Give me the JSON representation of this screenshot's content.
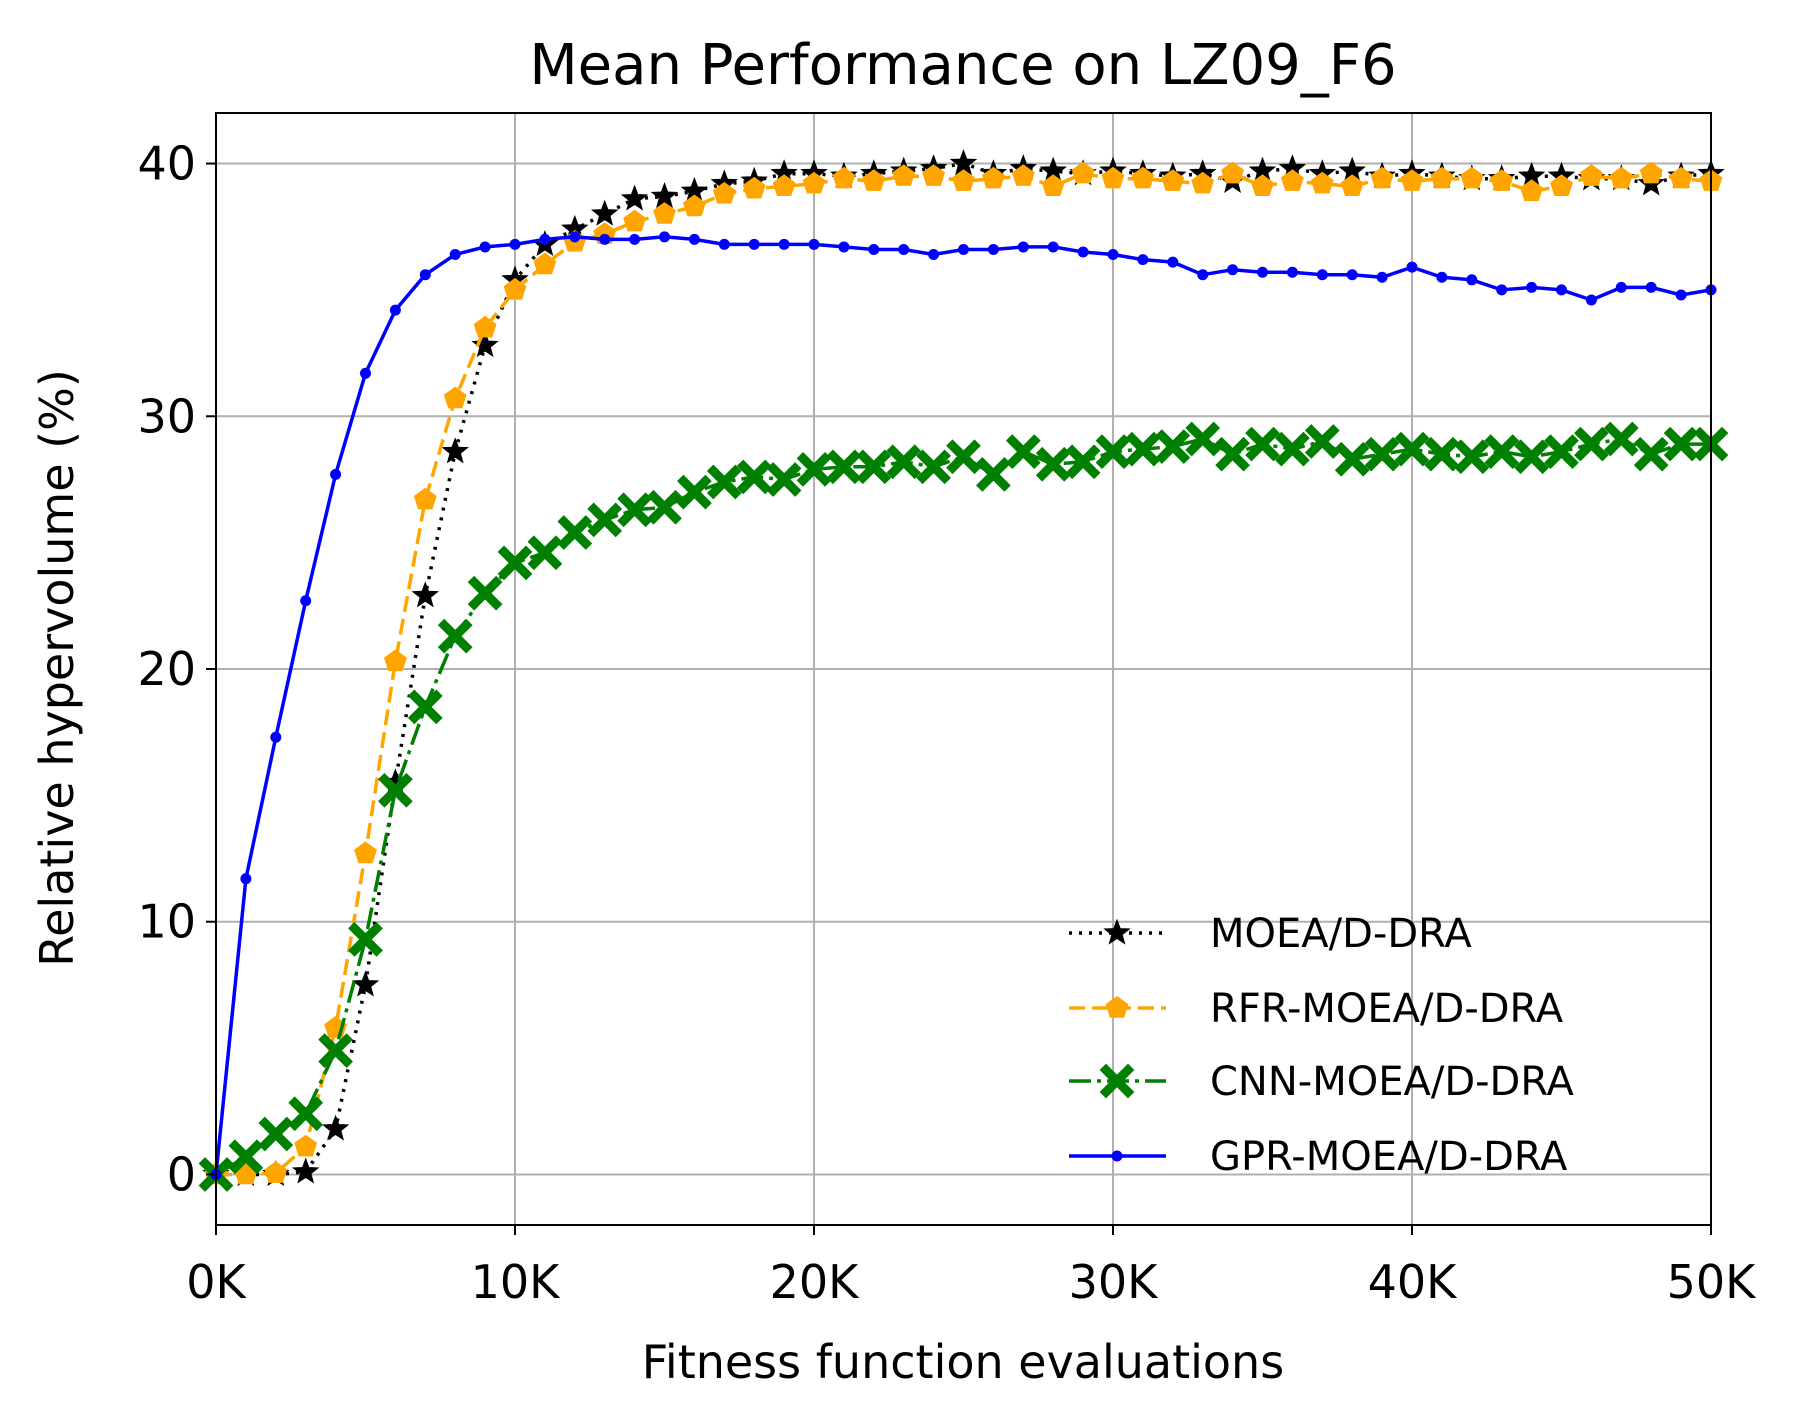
{
  "chart_data": {
    "type": "line",
    "title": "Mean Performance on LZ09_F6",
    "xlabel": "Fitness function evaluations",
    "ylabel": "Relative hypervolume (%)",
    "xlim": [
      0,
      50000
    ],
    "ylim": [
      -2,
      42
    ],
    "grid": true,
    "legend_position": "lower-right",
    "x_ticks": [
      0,
      10000,
      20000,
      30000,
      40000,
      50000
    ],
    "x_tick_labels": [
      "0K",
      "10K",
      "20K",
      "30K",
      "40K",
      "50K"
    ],
    "y_ticks": [
      0,
      10,
      20,
      30,
      40
    ],
    "y_tick_labels": [
      "0",
      "10",
      "20",
      "30",
      "40"
    ],
    "x": [
      0,
      1000,
      2000,
      3000,
      4000,
      5000,
      6000,
      7000,
      8000,
      9000,
      10000,
      11000,
      12000,
      13000,
      14000,
      15000,
      16000,
      17000,
      18000,
      19000,
      20000,
      21000,
      22000,
      23000,
      24000,
      25000,
      26000,
      27000,
      28000,
      29000,
      30000,
      31000,
      32000,
      33000,
      34000,
      35000,
      36000,
      37000,
      38000,
      39000,
      40000,
      41000,
      42000,
      43000,
      44000,
      45000,
      46000,
      47000,
      48000,
      49000,
      50000
    ],
    "series": [
      {
        "name": "MOEA/D-DRA",
        "color": "#000000",
        "linestyle": "dotted",
        "marker": "star",
        "values": [
          0,
          0,
          0,
          0.1,
          1.8,
          7.5,
          15.5,
          22.9,
          28.6,
          32.8,
          35.4,
          36.8,
          37.4,
          38.0,
          38.6,
          38.7,
          38.9,
          39.2,
          39.3,
          39.6,
          39.6,
          39.5,
          39.6,
          39.7,
          39.8,
          40.0,
          39.6,
          39.8,
          39.7,
          39.6,
          39.7,
          39.6,
          39.5,
          39.6,
          39.3,
          39.7,
          39.8,
          39.6,
          39.7,
          39.5,
          39.6,
          39.5,
          39.4,
          39.4,
          39.5,
          39.5,
          39.4,
          39.4,
          39.2,
          39.5,
          39.6
        ]
      },
      {
        "name": "RFR-MOEA/D-DRA",
        "color": "#FFA500",
        "linestyle": "dashed",
        "marker": "pentagon",
        "values": [
          0,
          0,
          0.05,
          1.1,
          5.8,
          12.7,
          20.3,
          26.7,
          30.7,
          33.5,
          35.0,
          36.0,
          36.9,
          37.2,
          37.7,
          38.0,
          38.3,
          38.8,
          39.0,
          39.1,
          39.2,
          39.4,
          39.3,
          39.5,
          39.5,
          39.3,
          39.4,
          39.5,
          39.1,
          39.6,
          39.4,
          39.4,
          39.3,
          39.2,
          39.6,
          39.1,
          39.3,
          39.2,
          39.1,
          39.4,
          39.3,
          39.4,
          39.4,
          39.3,
          38.9,
          39.1,
          39.5,
          39.4,
          39.6,
          39.4,
          39.3
        ]
      },
      {
        "name": "CNN-MOEA/D-DRA",
        "color": "#008000",
        "linestyle": "dashdot",
        "marker": "x-filled",
        "values": [
          0,
          0.7,
          1.6,
          2.4,
          4.9,
          9.3,
          15.2,
          18.5,
          21.3,
          23.0,
          24.2,
          24.6,
          25.4,
          25.9,
          26.3,
          26.4,
          27.0,
          27.4,
          27.6,
          27.5,
          27.9,
          28.0,
          28.0,
          28.2,
          28.0,
          28.4,
          27.7,
          28.6,
          28.1,
          28.2,
          28.6,
          28.7,
          28.8,
          29.1,
          28.5,
          28.9,
          28.7,
          29.0,
          28.3,
          28.5,
          28.7,
          28.5,
          28.4,
          28.6,
          28.4,
          28.6,
          28.9,
          29.1,
          28.5,
          28.9,
          28.9
        ]
      },
      {
        "name": "GPR-MOEA/D-DRA",
        "color": "#0000FF",
        "linestyle": "solid",
        "marker": "dot",
        "values": [
          0,
          11.7,
          17.3,
          22.7,
          27.7,
          31.7,
          34.2,
          35.6,
          36.4,
          36.7,
          36.8,
          37.0,
          37.1,
          37.0,
          37.0,
          37.1,
          37.0,
          36.8,
          36.8,
          36.8,
          36.8,
          36.7,
          36.6,
          36.6,
          36.4,
          36.6,
          36.6,
          36.7,
          36.7,
          36.5,
          36.4,
          36.2,
          36.1,
          35.6,
          35.8,
          35.7,
          35.7,
          35.6,
          35.6,
          35.5,
          35.9,
          35.5,
          35.4,
          35.0,
          35.1,
          35.0,
          34.6,
          35.1,
          35.1,
          34.8,
          35.0
        ]
      }
    ]
  }
}
